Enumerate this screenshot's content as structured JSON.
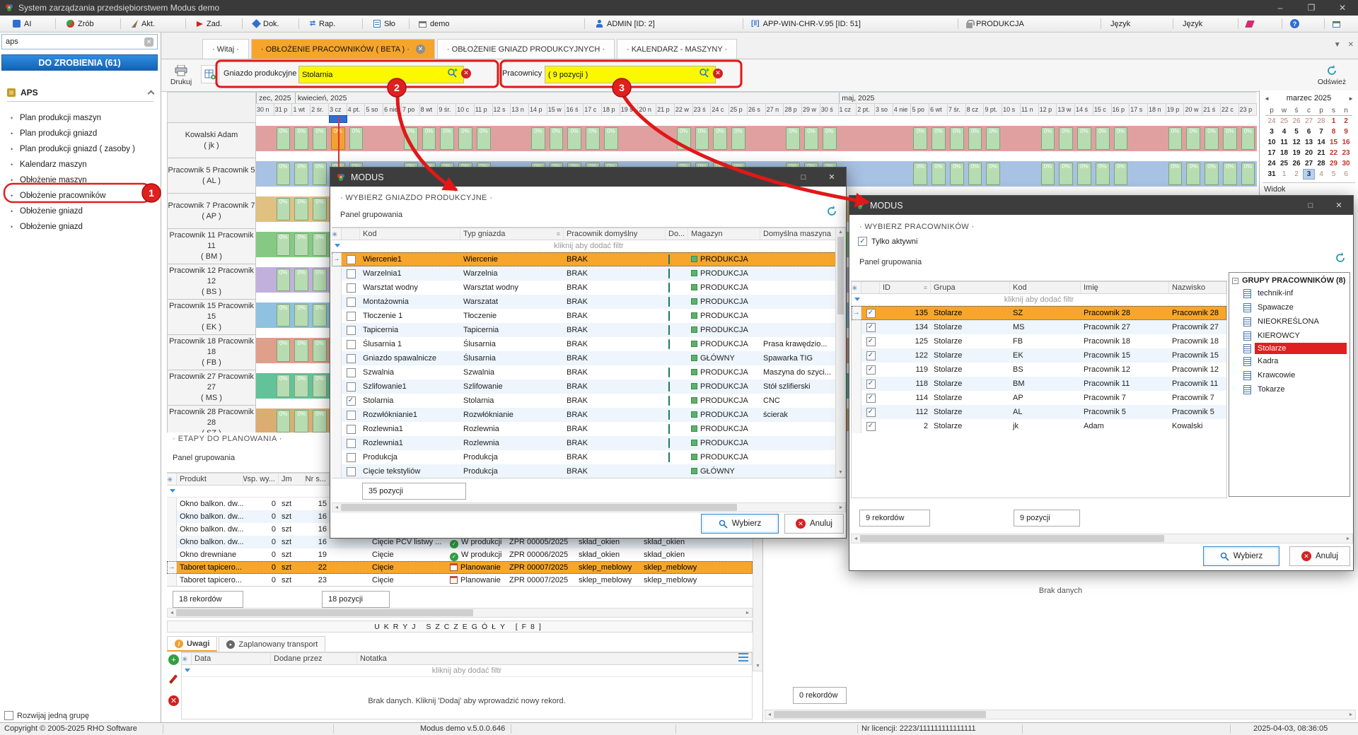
{
  "window": {
    "title": "System zarządzania przedsiębiorstwem Modus demo"
  },
  "toolbar": {
    "ai": "AI",
    "zrob": "Zrób",
    "akt": "Akt.",
    "zad": "Zad.",
    "dok": "Dok.",
    "rap": "Rap.",
    "slo": "Sło",
    "demo": "demo",
    "admin": "ADMIN [ID: 2]",
    "app": "APP-WIN-CHR-V.95 [ID: 51]",
    "produkcja": "PRODUKCJA",
    "jezyk1": "Język",
    "jezyk2": "Język"
  },
  "sidebar": {
    "search_value": "aps",
    "todo_banner": "DO ZROBIENIA (61)",
    "section": "APS",
    "items": [
      "Plan produkcji maszyn",
      "Plan produkcji gniazd",
      "Plan produkcji gniazd ( zasoby )",
      "Kalendarz maszyn",
      "Obłożenie  maszyn",
      "Obłożenie pracowników",
      "Obłoż­enie gniazd",
      "Obłożenie gniazd"
    ],
    "highlight_index": 5,
    "expand_group": "Rozwijaj jedną grupę"
  },
  "tabs": [
    {
      "label": "· Witaj ·",
      "active": false,
      "closable": false
    },
    {
      "label": "· OBŁOŻENIE PRACOWNIKÓW ( BETA ) ·",
      "active": true,
      "closable": true
    },
    {
      "label": "· OBŁOŻENIE GNIAZD PRODUKCYJNYCH ·",
      "active": false,
      "closable": false
    },
    {
      "label": "· KALENDARZ - MASZYNY ·",
      "active": false,
      "closable": false
    }
  ],
  "actionbar": {
    "print": "Drukuj",
    "filter1_label": "Gniazdo produkcyjne",
    "filter1_value": "Stolarnia",
    "filter2_label": "Pracownicy",
    "filter2_value": "( 9 pozycji )",
    "refresh": "Odśwież",
    "badge1": "1",
    "badge2": "2",
    "badge3": "3"
  },
  "gantt": {
    "months": [
      {
        "label": "zec, 2025",
        "span": 2
      },
      {
        "label": "kwiecień, 2025",
        "span": 30
      },
      {
        "label": "maj, 2025",
        "span": 23
      }
    ],
    "days": [
      {
        "l": "30 n",
        "w": 0
      },
      {
        "l": "31 p",
        "w": 1
      },
      {
        "l": "1 wt",
        "w": 1
      },
      {
        "l": "2 śr.",
        "w": 1
      },
      {
        "l": "3 cz",
        "w": 1
      },
      {
        "l": "4 pt.",
        "w": 1
      },
      {
        "l": "5 so",
        "w": 0
      },
      {
        "l": "6 nie",
        "w": 0
      },
      {
        "l": "7 po",
        "w": 1
      },
      {
        "l": "8 wt",
        "w": 1
      },
      {
        "l": "9 śr.",
        "w": 1
      },
      {
        "l": "10 c",
        "w": 1
      },
      {
        "l": "11 p",
        "w": 1
      },
      {
        "l": "12 s",
        "w": 0
      },
      {
        "l": "13 n",
        "w": 0
      },
      {
        "l": "14 p",
        "w": 1
      },
      {
        "l": "15 w",
        "w": 1
      },
      {
        "l": "16 ś",
        "w": 1
      },
      {
        "l": "17 c",
        "w": 1
      },
      {
        "l": "18 p",
        "w": 1
      },
      {
        "l": "19 s",
        "w": 0
      },
      {
        "l": "20 n",
        "w": 0
      },
      {
        "l": "21 p",
        "w": 0
      },
      {
        "l": "22 w",
        "w": 1
      },
      {
        "l": "23 ś",
        "w": 1
      },
      {
        "l": "24 c",
        "w": 1
      },
      {
        "l": "25 p",
        "w": 1
      },
      {
        "l": "26 s",
        "w": 0
      },
      {
        "l": "27 n",
        "w": 0
      },
      {
        "l": "28 p",
        "w": 1
      },
      {
        "l": "29 w",
        "w": 1
      },
      {
        "l": "30 ś",
        "w": 1
      },
      {
        "l": "1 cz",
        "w": 0
      },
      {
        "l": "2 pt.",
        "w": 0
      },
      {
        "l": "3 so",
        "w": 0
      },
      {
        "l": "4 nie",
        "w": 0
      },
      {
        "l": "5 po",
        "w": 1
      },
      {
        "l": "6 wt",
        "w": 1
      },
      {
        "l": "7 śr.",
        "w": 1
      },
      {
        "l": "8 cz",
        "w": 1
      },
      {
        "l": "9 pt.",
        "w": 1
      },
      {
        "l": "10 s",
        "w": 0
      },
      {
        "l": "11 n",
        "w": 0
      },
      {
        "l": "12 p",
        "w": 1
      },
      {
        "l": "13 w",
        "w": 1
      },
      {
        "l": "14 ś",
        "w": 1
      },
      {
        "l": "15 c",
        "w": 1
      },
      {
        "l": "16 p",
        "w": 1
      },
      {
        "l": "17 s",
        "w": 0
      },
      {
        "l": "18 n",
        "w": 0
      },
      {
        "l": "19 p",
        "w": 1
      },
      {
        "l": "20 w",
        "w": 1
      },
      {
        "l": "21 ś",
        "w": 1
      },
      {
        "l": "22 c",
        "w": 1
      },
      {
        "l": "23 p",
        "w": 1
      }
    ],
    "today_index": 4,
    "task_label": "0%",
    "rows": [
      {
        "name": "Kowalski Adam",
        "code": "( jk )",
        "color": "#e0a0a0"
      },
      {
        "name": "Pracownik 5 Pracownik 5",
        "code": "( AL )",
        "color": "#a8c2e4"
      },
      {
        "name": "Pracownik 7 Pracownik 7",
        "code": "( AP )",
        "color": "#e0c182"
      },
      {
        "name": "Pracownik 11 Pracownik 11",
        "code": "( BM )",
        "color": "#85c985"
      },
      {
        "name": "Pracownik 12 Pracownik 12",
        "code": "( BS )",
        "color": "#c2b0dc"
      },
      {
        "name": "Pracownik 15 Pracownik 15",
        "code": "( EK )",
        "color": "#8fc2e0"
      },
      {
        "name": "Pracownik 18 Pracownik 18",
        "code": "( FB )",
        "color": "#df9f8a"
      },
      {
        "name": "Pracownik 27 Pracownik 27",
        "code": "( MS )",
        "color": "#62c299"
      },
      {
        "name": "Pracownik 28 Pracownik 28",
        "code": "( SZ )",
        "color": "#dcad72"
      }
    ]
  },
  "calendar": {
    "title": "marzec 2025",
    "dow": [
      "p",
      "w",
      "ś",
      "c",
      "p",
      "s",
      "n"
    ],
    "weeks": [
      [
        "24",
        "25",
        "26",
        "27",
        "28",
        "1",
        "2"
      ],
      [
        "3",
        "4",
        "5",
        "6",
        "7",
        "8",
        "9"
      ],
      [
        "10",
        "11",
        "12",
        "13",
        "14",
        "15",
        "16"
      ],
      [
        "17",
        "18",
        "19",
        "20",
        "21",
        "22",
        "23"
      ],
      [
        "24",
        "25",
        "26",
        "27",
        "28",
        "29",
        "30"
      ],
      [
        "31",
        "1",
        "2",
        "3",
        "4",
        "5",
        "6"
      ]
    ],
    "today": [
      5,
      3
    ],
    "footer": "Widok"
  },
  "dialog1": {
    "title": "MODUS",
    "subtitle": "· WYBIERZ GNIAZDO PRODUKCYJNE ·",
    "grouping": "Panel grupowania",
    "filter_hint": "kliknij aby dodać filtr",
    "columns": [
      "Kod",
      "Typ gniazda",
      "Pracownik domyślny",
      "Do...",
      "Magazyn",
      "Domyślna maszyna"
    ],
    "rows": [
      {
        "kod": "Wiercenie1",
        "typ": "Wiercenie",
        "prac": "BRAK",
        "mag": "PRODUKCJA",
        "masz": "",
        "checked": false,
        "selected": true,
        "doicon": true
      },
      {
        "kod": "Warzelnia1",
        "typ": "Warzelnia",
        "prac": "BRAK",
        "mag": "PRODUKCJA",
        "masz": "",
        "checked": false,
        "doicon": true
      },
      {
        "kod": "Warsztat wodny",
        "typ": "Warsztat wodny",
        "prac": "BRAK",
        "mag": "PRODUKCJA",
        "masz": "",
        "checked": false,
        "doicon": true
      },
      {
        "kod": "Montażownia",
        "typ": "Warszatat",
        "prac": "BRAK",
        "mag": "PRODUKCJA",
        "masz": "",
        "checked": false,
        "doicon": true
      },
      {
        "kod": "Tłoczenie 1",
        "typ": "Tłoczenie",
        "prac": "BRAK",
        "mag": "PRODUKCJA",
        "masz": "",
        "checked": false,
        "doicon": true
      },
      {
        "kod": "Tapicernia",
        "typ": "Tapicernia",
        "prac": "BRAK",
        "mag": "PRODUKCJA",
        "masz": "",
        "checked": false,
        "doicon": true
      },
      {
        "kod": "Ślusarnia 1",
        "typ": "Ślusarnia",
        "prac": "BRAK",
        "mag": "PRODUKCJA",
        "masz": "Prasa krawędzio...",
        "checked": false,
        "doicon": true
      },
      {
        "kod": "Gniazdo spawalnicze",
        "typ": "Ślusarnia",
        "prac": "BRAK",
        "mag": "GŁÓWNY",
        "masz": "Spawarka TIG",
        "checked": false,
        "doicon": false
      },
      {
        "kod": "Szwalnia",
        "typ": "Szwalnia",
        "prac": "BRAK",
        "mag": "PRODUKCJA",
        "masz": "Maszyna do szyci...",
        "checked": false,
        "doicon": true
      },
      {
        "kod": "Szlifowanie1",
        "typ": "Szlifowanie",
        "prac": "BRAK",
        "mag": "PRODUKCJA",
        "masz": "Stół szlifierski",
        "checked": false,
        "doicon": true
      },
      {
        "kod": "Stolarnia",
        "typ": "Stolarnia",
        "prac": "BRAK",
        "mag": "PRODUKCJA",
        "masz": "CNC",
        "checked": true,
        "doicon": true
      },
      {
        "kod": "Rozwłóknianie1",
        "typ": "Rozwłóknianie",
        "prac": "BRAK",
        "mag": "PRODUKCJA",
        "masz": "ścierak",
        "checked": false,
        "doicon": true
      },
      {
        "kod": "Rozlewnia1",
        "typ": "Rozlewnia",
        "prac": "BRAK",
        "mag": "PRODUKCJA",
        "masz": "",
        "checked": false,
        "doicon": true
      },
      {
        "kod": "Rozlewnia1",
        "typ": "Rozlewnia",
        "prac": "BRAK",
        "mag": "PRODUKCJA",
        "masz": "",
        "checked": false,
        "doicon": true
      },
      {
        "kod": "Produkcja",
        "typ": "Produkcja",
        "prac": "BRAK",
        "mag": "PRODUKCJA",
        "masz": "",
        "checked": false,
        "doicon": true
      },
      {
        "kod": "Cięcie tekstyliów",
        "typ": "Produkcja",
        "prac": "BRAK",
        "mag": "GŁÓWNY",
        "masz": "",
        "checked": false,
        "doicon": false
      }
    ],
    "count": "35 pozycji",
    "select_label": "Wybierz",
    "cancel_label": "Anuluj"
  },
  "dialog2": {
    "title": "MODUS",
    "subtitle": "· WYBIERZ PRACOWNIKÓW ·",
    "only_active": "Tylko aktywni",
    "grouping": "Panel grupowania",
    "filter_hint": "kliknij aby dodać filtr",
    "columns": [
      "ID",
      "Grupa",
      "Kod",
      "Imię",
      "Nazwisko"
    ],
    "rows": [
      {
        "id": "135",
        "grupa": "Stolarze",
        "kod": "SZ",
        "imie": "Pracownik 28",
        "nazwisko": "Pracownik 28",
        "selected": true
      },
      {
        "id": "134",
        "grupa": "Stolarze",
        "kod": "MS",
        "imie": "Pracownik 27",
        "nazwisko": "Pracownik 27"
      },
      {
        "id": "125",
        "grupa": "Stolarze",
        "kod": "FB",
        "imie": "Pracownik 18",
        "nazwisko": "Pracownik 18"
      },
      {
        "id": "122",
        "grupa": "Stolarze",
        "kod": "EK",
        "imie": "Pracownik 15",
        "nazwisko": "Pracownik 15"
      },
      {
        "id": "119",
        "grupa": "Stolarze",
        "kod": "BS",
        "imie": "Pracownik 12",
        "nazwisko": "Pracownik 12"
      },
      {
        "id": "118",
        "grupa": "Stolarze",
        "kod": "BM",
        "imie": "Pracownik 11",
        "nazwisko": "Pracownik 11"
      },
      {
        "id": "114",
        "grupa": "Stolarze",
        "kod": "AP",
        "imie": "Pracownik 7",
        "nazwisko": "Pracownik 7"
      },
      {
        "id": "112",
        "grupa": "Stolarze",
        "kod": "AL",
        "imie": "Pracownik 5",
        "nazwisko": "Pracownik 5"
      },
      {
        "id": "2",
        "grupa": "Stolarze",
        "kod": "jk",
        "imie": "Adam",
        "nazwisko": "Kowalski"
      }
    ],
    "tree": {
      "root": "GRUPY PRACOWNIKÓW (8)",
      "items": [
        "technik-inf",
        "Spawacze",
        "NIEOKREŚLONA",
        "KIEROWCY",
        "Stolarze",
        "Kadra",
        "Krawcowie",
        "Tokarze"
      ],
      "selected_index": 4
    },
    "records": "9 rekordów",
    "count": "9 pozycji",
    "select_label": "Wybierz",
    "cancel_label": "Anuluj"
  },
  "etapy": {
    "heading": "· ETAPY DO PLANOWANIA ·",
    "grouping": "Panel grupowania",
    "filter_hint": "kliknij aby dodać filtr",
    "columns": [
      "Produkt",
      "Wsp. wy...",
      "Jm",
      "Nr s..."
    ],
    "rows": [
      {
        "produkt": "Okno balkon. dw...",
        "wsp": "0",
        "jm": "szt",
        "nr": "15",
        "etap": "",
        "status": "",
        "status_type": "",
        "zlec": "",
        "mag1": "",
        "mag2": ""
      },
      {
        "produkt": "Okno balkon. dw...",
        "wsp": "0",
        "jm": "szt",
        "nr": "16",
        "etap": "",
        "status": "",
        "status_type": "",
        "zlec": "",
        "mag1": "",
        "mag2": ""
      },
      {
        "produkt": "Okno balkon. dw...",
        "wsp": "0",
        "jm": "szt",
        "nr": "16",
        "etap": "",
        "status": "",
        "status_type": "",
        "zlec": "",
        "mag1": "",
        "mag2": ""
      },
      {
        "produkt": "Okno balkon. dw...",
        "wsp": "0",
        "jm": "szt",
        "nr": "16",
        "etap": "Cięcie PCV listwy ...",
        "status": "W produkcji",
        "status_type": "ok",
        "zlec": "ZPR 00005/2025",
        "mag1": "skład_okien",
        "mag2": "skład_okien"
      },
      {
        "produkt": "Okno drewniane",
        "wsp": "0",
        "jm": "szt",
        "nr": "19",
        "etap": "Cięcie",
        "status": "W produkcji",
        "status_type": "ok",
        "zlec": "ZPR 00006/2025",
        "mag1": "skład_okien",
        "mag2": "skład_okien"
      },
      {
        "produkt": "Taboret tapicero...",
        "wsp": "0",
        "jm": "szt",
        "nr": "22",
        "etap": "Cięcie",
        "status": "Planowanie",
        "status_type": "plan",
        "zlec": "ZPR 00007/2025",
        "mag1": "sklep_meblowy",
        "mag2": "sklep_meblowy",
        "selected": true
      },
      {
        "produkt": "Taboret tapicero...",
        "wsp": "0",
        "jm": "szt",
        "nr": "23",
        "etap": "Cięcie",
        "status": "Planowanie",
        "status_type": "plan",
        "zlec": "ZPR 00007/2025",
        "mag1": "sklep_meblowy",
        "mag2": "sklep_meblowy"
      }
    ],
    "records": "18 rekordów",
    "count": "18 pozycji"
  },
  "details": {
    "hide_button": "UKRYJ SZCZEGÓŁY  [F8]",
    "tab1": "Uwagi",
    "tab2": "Zaplanowany transport",
    "columns": [
      "Data",
      "Dodane przez",
      "Notatka"
    ],
    "filter_hint": "kliknij aby dodać filtr",
    "empty": "Brak danych. Kliknij 'Dodaj' aby wprowadzić nowy rekord."
  },
  "right_panel": {
    "empty": "Brak danych",
    "records": "0 rekordów"
  },
  "statusbar": {
    "copyright": "Copyright © 2005-2025 RHO Software",
    "version": "Modus demo v.5.0.0.646",
    "license": "Nr licencji: 2223/111111111111111",
    "datetime": "2025-04-03,  08:36:05"
  }
}
